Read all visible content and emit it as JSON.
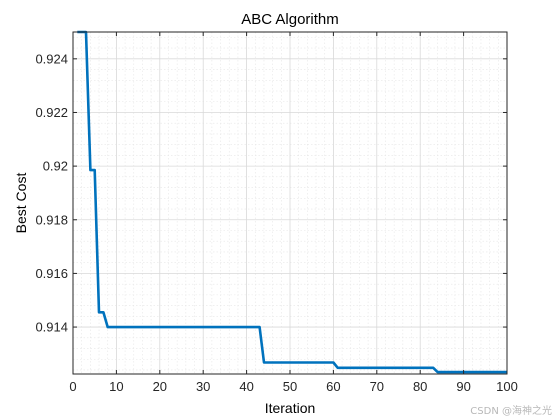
{
  "chart_data": {
    "type": "line",
    "title": "ABC Algorithm",
    "xlabel": "Iteration",
    "ylabel": "Best Cost",
    "xlim": [
      0,
      100
    ],
    "ylim": [
      0.91225,
      0.925
    ],
    "xticks": [
      0,
      10,
      20,
      30,
      40,
      50,
      60,
      70,
      80,
      90,
      100
    ],
    "yticks": [
      0.914,
      0.916,
      0.918,
      0.92,
      0.922,
      0.924
    ],
    "ytick_labels": [
      "0.914",
      "0.916",
      "0.918",
      "0.92",
      "0.922",
      "0.924"
    ],
    "grid": true,
    "minor_grid": true,
    "line_color": "#0072BD",
    "series": [
      {
        "x": [
          1,
          2,
          3,
          4,
          5,
          6,
          7,
          8,
          43,
          44,
          60,
          61,
          83,
          84,
          100
        ],
        "y": [
          0.925,
          0.925,
          0.925,
          0.91985,
          0.91985,
          0.91455,
          0.91455,
          0.914,
          0.914,
          0.91268,
          0.91268,
          0.91248,
          0.91248,
          0.91232,
          0.91232
        ]
      }
    ]
  },
  "watermark": "CSDN @海神之光"
}
